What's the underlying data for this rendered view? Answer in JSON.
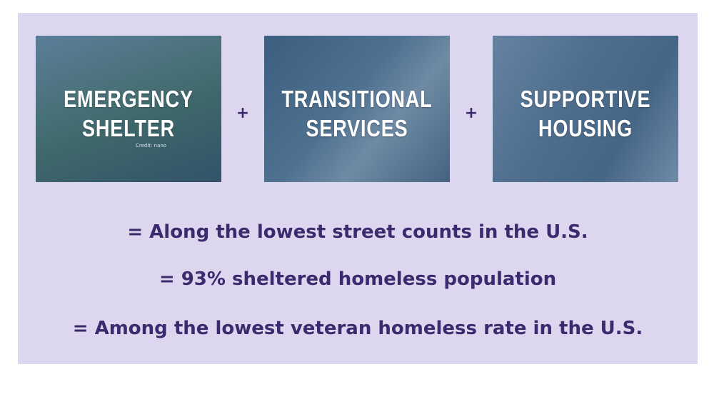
{
  "panels": [
    {
      "lines": [
        "EMERGENCY",
        "SHELTER"
      ],
      "credit": "Credit: nano"
    },
    {
      "lines": [
        "TRANSITIONAL",
        "SERVICES"
      ]
    },
    {
      "lines": [
        "SUPPORTIVE",
        "HOUSING"
      ]
    }
  ],
  "operators": [
    "+",
    "+"
  ],
  "statements": [
    "= Along the lowest street counts in the U.S.",
    "= 93% sheltered homeless population",
    "= Among the lowest veteran homeless rate in the U.S."
  ]
}
